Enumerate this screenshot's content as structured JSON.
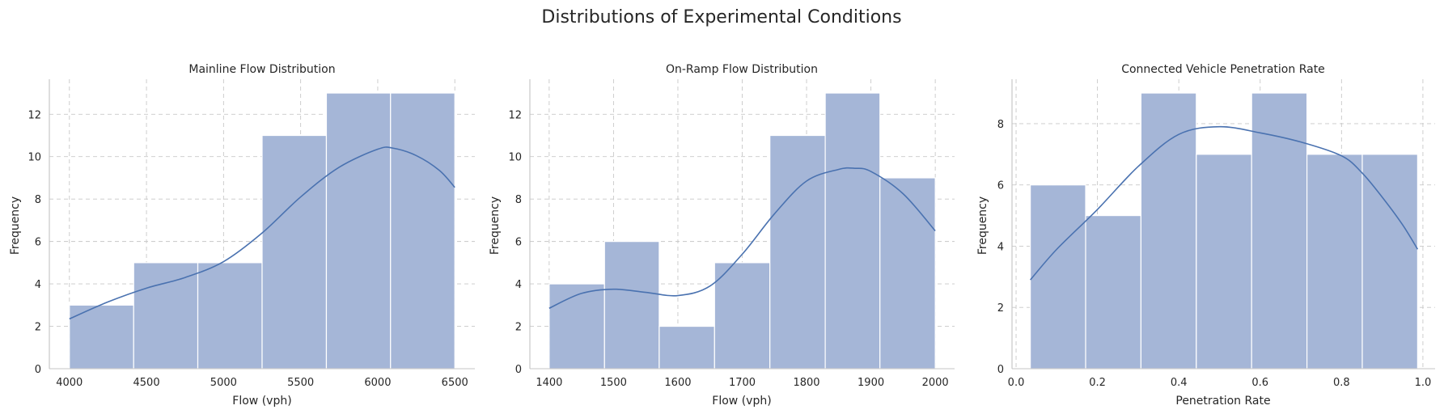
{
  "figure": {
    "title": "Distributions of Experimental Conditions"
  },
  "colors": {
    "bar": "#a5b6d7",
    "kde": "#4a72b0",
    "grid": "#c8c8c8",
    "spine": "#c4c4c4"
  },
  "chart_data": [
    {
      "type": "bar",
      "title": "Mainline Flow Distribution",
      "xlabel": "Flow (vph)",
      "ylabel": "Frequency",
      "xlim": [
        3870,
        6630
      ],
      "ylim": [
        0,
        13.65
      ],
      "xticks": [
        4000,
        4500,
        5000,
        5500,
        6000,
        6500
      ],
      "yticks": [
        0,
        2,
        4,
        6,
        8,
        10,
        12
      ],
      "tick_format": "int",
      "grid": true,
      "bins": [
        {
          "x0": 4000,
          "x1": 4417,
          "count": 3
        },
        {
          "x0": 4417,
          "x1": 4833,
          "count": 5
        },
        {
          "x0": 4833,
          "x1": 5250,
          "count": 5
        },
        {
          "x0": 5250,
          "x1": 5667,
          "count": 11
        },
        {
          "x0": 5667,
          "x1": 6083,
          "count": 13
        },
        {
          "x0": 6083,
          "x1": 6500,
          "count": 13
        }
      ],
      "kde": {
        "x": [
          4000,
          4250,
          4500,
          4750,
          5000,
          5250,
          5500,
          5750,
          6000,
          6100,
          6250,
          6400,
          6500
        ],
        "y": [
          2.35,
          3.15,
          3.8,
          4.3,
          5.05,
          6.4,
          8.1,
          9.5,
          10.35,
          10.4,
          10.05,
          9.35,
          8.55
        ]
      }
    },
    {
      "type": "bar",
      "title": "On-Ramp Flow Distribution",
      "xlabel": "Flow (vph)",
      "ylabel": "Frequency",
      "xlim": [
        1370,
        2030
      ],
      "ylim": [
        0,
        13.65
      ],
      "xticks": [
        1400,
        1500,
        1600,
        1700,
        1800,
        1900,
        2000
      ],
      "yticks": [
        0,
        2,
        4,
        6,
        8,
        10,
        12
      ],
      "tick_format": "int",
      "grid": true,
      "bins": [
        {
          "x0": 1400,
          "x1": 1486,
          "count": 4
        },
        {
          "x0": 1486,
          "x1": 1571,
          "count": 6
        },
        {
          "x0": 1571,
          "x1": 1657,
          "count": 2
        },
        {
          "x0": 1657,
          "x1": 1743,
          "count": 5
        },
        {
          "x0": 1743,
          "x1": 1829,
          "count": 11
        },
        {
          "x0": 1829,
          "x1": 1914,
          "count": 13
        },
        {
          "x0": 1914,
          "x1": 2000,
          "count": 9
        }
      ],
      "kde": {
        "x": [
          1400,
          1450,
          1500,
          1550,
          1600,
          1650,
          1700,
          1750,
          1800,
          1850,
          1875,
          1900,
          1950,
          2000
        ],
        "y": [
          2.85,
          3.55,
          3.75,
          3.6,
          3.45,
          3.9,
          5.4,
          7.3,
          8.85,
          9.4,
          9.45,
          9.3,
          8.25,
          6.5
        ]
      }
    },
    {
      "type": "bar",
      "title": "Connected Vehicle Penetration Rate",
      "xlabel": "Penetration Rate",
      "ylabel": "Frequency",
      "xlim": [
        -0.01,
        1.03
      ],
      "ylim": [
        0,
        9.45
      ],
      "xticks": [
        0.0,
        0.2,
        0.4,
        0.6,
        0.8,
        1.0
      ],
      "yticks": [
        0,
        2,
        4,
        6,
        8
      ],
      "tick_format": "one_decimal",
      "grid": true,
      "bins": [
        {
          "x0": 0.035,
          "x1": 0.171,
          "count": 6
        },
        {
          "x0": 0.171,
          "x1": 0.307,
          "count": 5
        },
        {
          "x0": 0.307,
          "x1": 0.443,
          "count": 9
        },
        {
          "x0": 0.443,
          "x1": 0.579,
          "count": 7
        },
        {
          "x0": 0.579,
          "x1": 0.715,
          "count": 9
        },
        {
          "x0": 0.715,
          "x1": 0.851,
          "count": 7
        },
        {
          "x0": 0.851,
          "x1": 0.987,
          "count": 7
        }
      ],
      "kde": {
        "x": [
          0.035,
          0.1,
          0.2,
          0.3,
          0.4,
          0.5,
          0.6,
          0.7,
          0.8,
          0.85,
          0.9,
          0.95,
          0.987
        ],
        "y": [
          2.9,
          3.9,
          5.2,
          6.6,
          7.65,
          7.9,
          7.7,
          7.4,
          6.95,
          6.4,
          5.6,
          4.7,
          3.9
        ]
      }
    }
  ]
}
